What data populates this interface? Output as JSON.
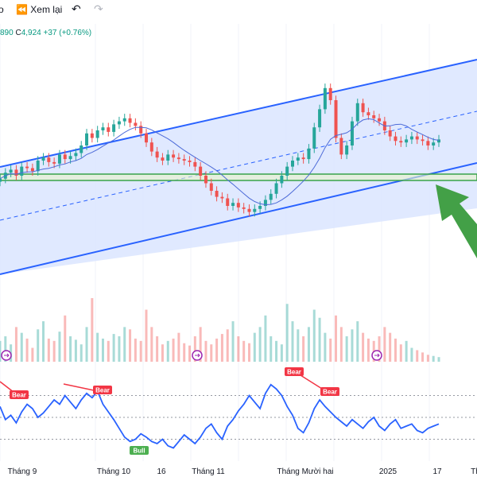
{
  "toolbar": {
    "partial_left_glyph": "o",
    "replay_label": "Xem lại",
    "undo_icon": "undo-icon",
    "redo_icon": "redo-icon"
  },
  "quote": {
    "high_partial": "890",
    "close_label": "C",
    "close_value": "4,924",
    "change": "+37 (+0.76%)"
  },
  "colors": {
    "up": "#26a69a",
    "down": "#ef5350",
    "channel_line": "#2962ff",
    "channel_fill": "#dbe5ff",
    "ma": "#4d6bd8",
    "support": "#38a34a",
    "rsi": "#2962ff",
    "arrow": "#43a047",
    "bear_tag": "#f23645",
    "bull_tag": "#4caf50",
    "event_icon": "#9c27b0"
  },
  "chart_data": {
    "type": "line",
    "x_tick_labels": [
      "Tháng 9",
      "Tháng 10",
      "16",
      "Tháng 11",
      "Tháng Mười hai",
      "2025",
      "17",
      "Th"
    ],
    "price_close": [
      58,
      62,
      64,
      60,
      66,
      65,
      63,
      70,
      72,
      69,
      68,
      74,
      71,
      73,
      75,
      80,
      88,
      85,
      90,
      92,
      89,
      94,
      96,
      98,
      95,
      93,
      88,
      82,
      76,
      72,
      70,
      74,
      72,
      71,
      70,
      69,
      66,
      60,
      55,
      50,
      46,
      45,
      40,
      42,
      39,
      38,
      36,
      38,
      40,
      44,
      48,
      55,
      60,
      66,
      70,
      72,
      71,
      78,
      92,
      104,
      118,
      110,
      85,
      74,
      80,
      96,
      108,
      102,
      100,
      98,
      96,
      90,
      86,
      83,
      82,
      84,
      86,
      84,
      83,
      80,
      82,
      84
    ],
    "price_min": 0,
    "price_max": 150,
    "volume": [
      18,
      22,
      15,
      30,
      25,
      20,
      12,
      28,
      35,
      20,
      18,
      26,
      40,
      22,
      19,
      15,
      30,
      55,
      25,
      20,
      18,
      24,
      22,
      30,
      28,
      20,
      18,
      45,
      30,
      22,
      15,
      18,
      20,
      25,
      16,
      14,
      22,
      30,
      18,
      15,
      20,
      24,
      28,
      35,
      22,
      18,
      16,
      25,
      30,
      40,
      22,
      18,
      15,
      50,
      35,
      28,
      22,
      30,
      45,
      38,
      25,
      20,
      40,
      30,
      22,
      28,
      35,
      25,
      20,
      18,
      22,
      30,
      25,
      20,
      15,
      18,
      12,
      10,
      8,
      6,
      5,
      4
    ],
    "rsi": [
      60,
      48,
      52,
      45,
      55,
      62,
      58,
      50,
      54,
      60,
      66,
      62,
      70,
      64,
      58,
      66,
      72,
      68,
      74,
      62,
      55,
      48,
      40,
      32,
      28,
      30,
      35,
      32,
      28,
      26,
      30,
      24,
      22,
      28,
      34,
      30,
      26,
      32,
      40,
      44,
      36,
      30,
      42,
      48,
      56,
      62,
      70,
      64,
      58,
      72,
      80,
      76,
      70,
      60,
      52,
      40,
      36,
      45,
      58,
      66,
      60,
      55,
      50,
      46,
      42,
      48,
      44,
      40,
      46,
      50,
      42,
      38,
      44,
      48,
      40,
      42,
      44,
      38,
      36,
      40,
      42,
      44
    ],
    "rsi_levels": [
      70,
      50,
      30
    ],
    "annotations": [
      "Bear",
      "Bear",
      "Bull",
      "Bear",
      "Bear"
    ]
  }
}
